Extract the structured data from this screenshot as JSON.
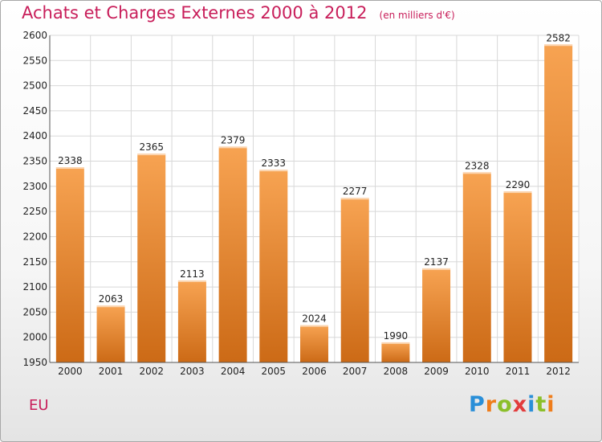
{
  "title": "Achats et Charges Externes 2000 à 2012",
  "unit_note": "(en milliers d'€)",
  "location": "EU",
  "logo": "Proxiti",
  "colors": {
    "accent": "#c81e5a",
    "bar_top": "#f7a352",
    "bar_bottom": "#cc6a16",
    "grid": "#d8d8d8"
  },
  "chart_data": {
    "type": "bar",
    "title": "Achats et Charges Externes 2000 à 2012",
    "subtitle": "(en milliers d'€)",
    "xlabel": "",
    "ylabel": "",
    "categories": [
      "2000",
      "2001",
      "2002",
      "2003",
      "2004",
      "2005",
      "2006",
      "2007",
      "2008",
      "2009",
      "2010",
      "2011",
      "2012"
    ],
    "values": [
      2338,
      2063,
      2365,
      2113,
      2379,
      2333,
      2024,
      2277,
      1990,
      2137,
      2328,
      2290,
      2582
    ],
    "ylim": [
      1950,
      2600
    ],
    "yticks": [
      1950,
      2000,
      2050,
      2100,
      2150,
      2200,
      2250,
      2300,
      2350,
      2400,
      2450,
      2500,
      2550,
      2600
    ],
    "grid": true,
    "legend": "none"
  }
}
